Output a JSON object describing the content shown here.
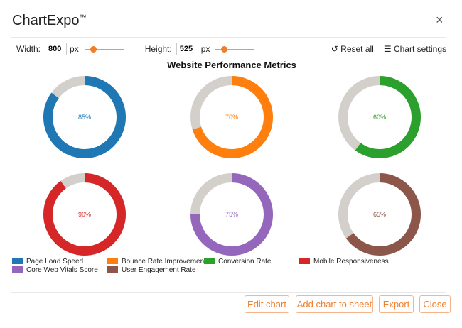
{
  "header": {
    "title": "ChartExpo",
    "trademark": "™",
    "close_icon": "×"
  },
  "toolbar": {
    "width_label": "Width:",
    "width_value": "800",
    "height_label": "Height:",
    "height_value": "525",
    "unit": "px",
    "width_slider_fraction": 0.15,
    "height_slider_fraction": 0.15,
    "reset_label": "Reset all",
    "settings_label": "Chart settings"
  },
  "chart_data": {
    "type": "pie",
    "subtype": "donut",
    "title": "Website Performance Metrics",
    "remainder_color": "#d3d0cb",
    "series": [
      {
        "name": "Page Load Speed",
        "value": 85,
        "label": "85%",
        "color": "#1f77b4"
      },
      {
        "name": "Bounce Rate Improvement",
        "value": 70,
        "label": "70%",
        "color": "#ff7f0e"
      },
      {
        "name": "Conversion Rate",
        "value": 60,
        "label": "60%",
        "color": "#2ca02c"
      },
      {
        "name": "Mobile Responsiveness",
        "value": 90,
        "label": "90%",
        "color": "#d62728"
      },
      {
        "name": "Core Web Vitals Score",
        "value": 75,
        "label": "75%",
        "color": "#9467bd"
      },
      {
        "name": "User Engagement Rate",
        "value": 65,
        "label": "65%",
        "color": "#8c564b"
      }
    ],
    "legend": "bottom"
  },
  "footer": {
    "edit": "Edit chart",
    "add": "Add chart to sheet",
    "export": "Export",
    "close": "Close"
  }
}
